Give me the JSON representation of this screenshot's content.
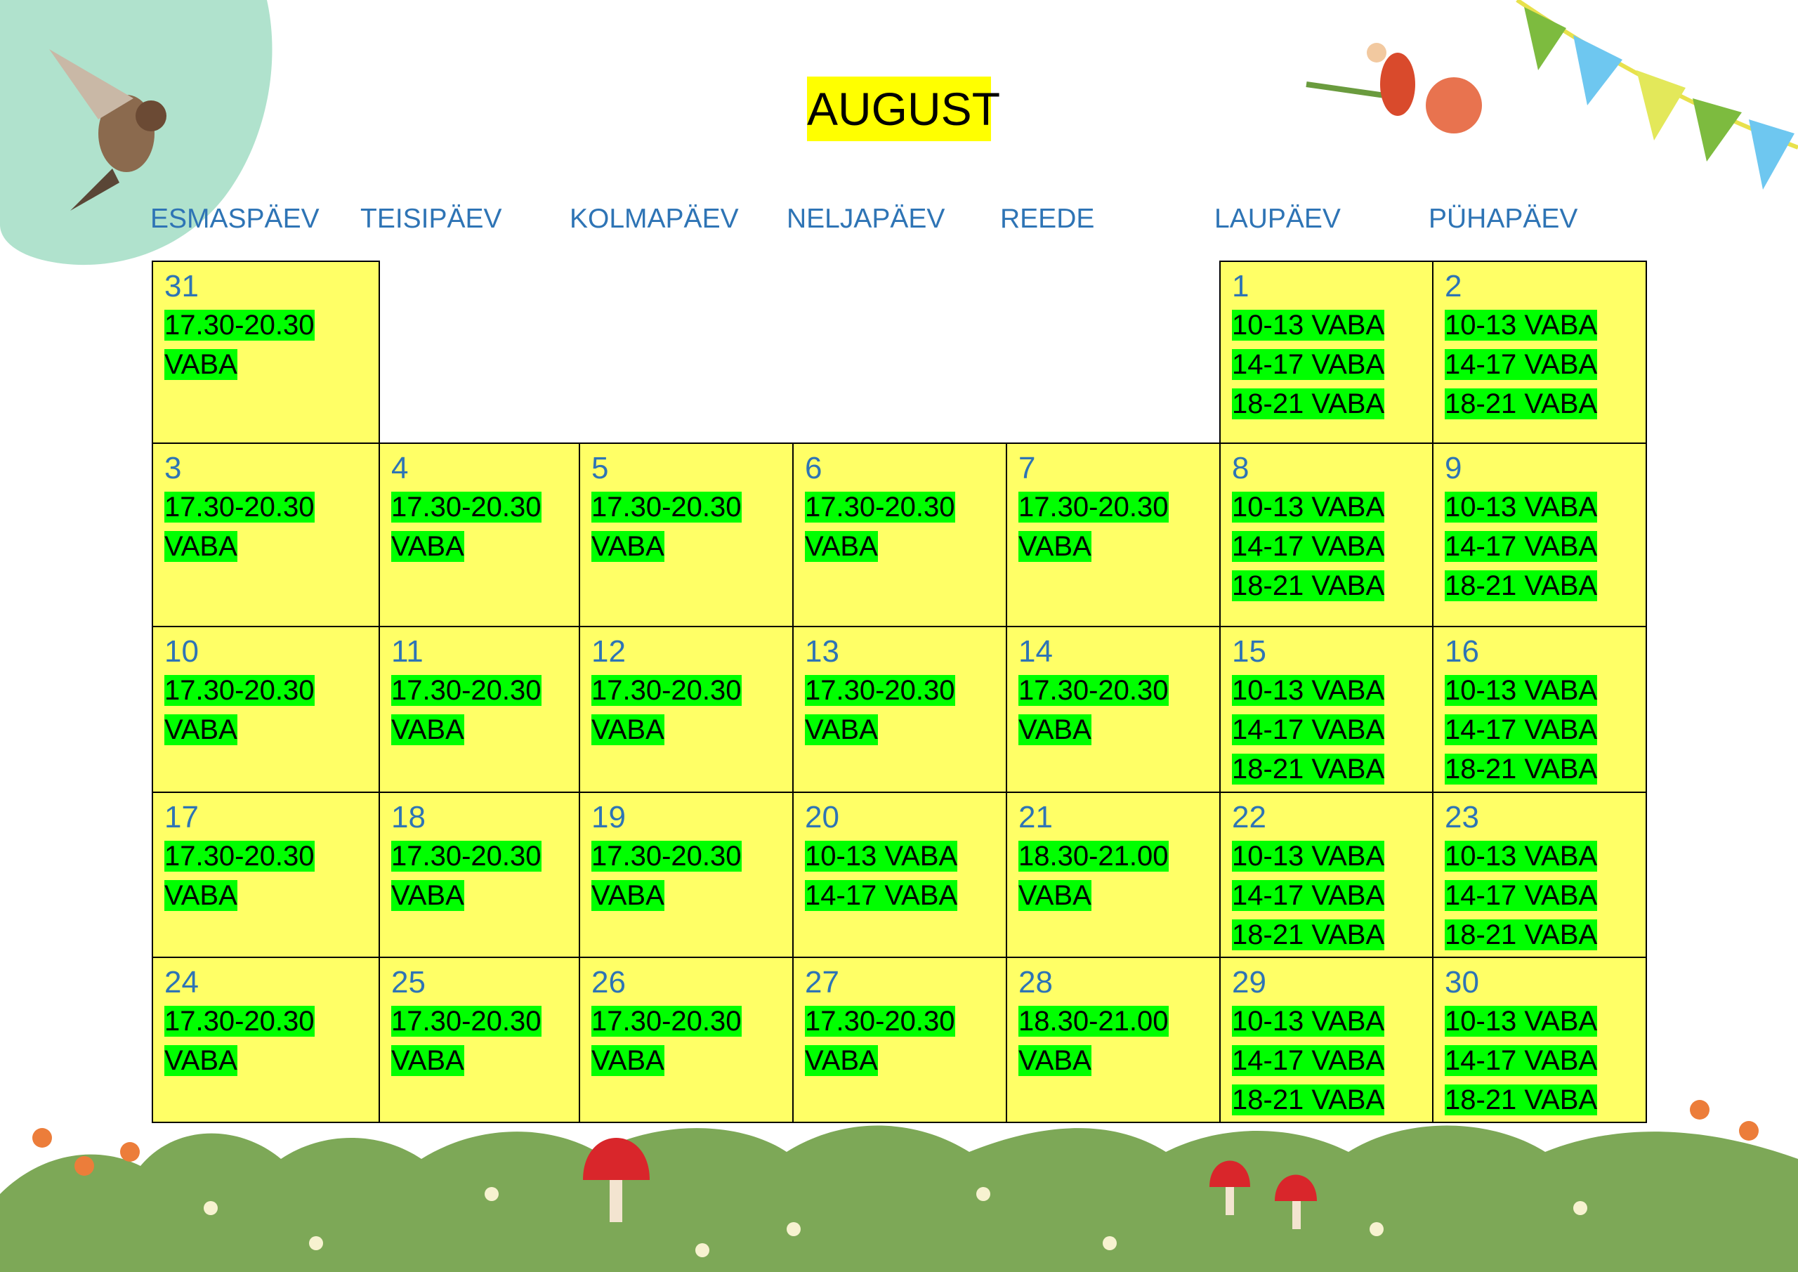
{
  "calendar": {
    "title": "AUGUST",
    "weekdays": [
      "ESMASPÄEV",
      "TEISIPÄEV",
      "KOLMAPÄEV",
      "NELJAPÄEV",
      "REEDE",
      "LAUPÄEV",
      "PÜHAPÄEV"
    ],
    "weeks": [
      [
        {
          "day": 31,
          "lines": [
            "17.30-20.30",
            "VABA"
          ]
        },
        null,
        null,
        null,
        null,
        {
          "day": 1,
          "lines": [
            "10-13 VABA",
            "14-17 VABA",
            "18-21 VABA"
          ]
        },
        {
          "day": 2,
          "lines": [
            "10-13 VABA",
            "14-17 VABA",
            "18-21 VABA"
          ]
        }
      ],
      [
        {
          "day": 3,
          "lines": [
            "17.30-20.30",
            "VABA"
          ]
        },
        {
          "day": 4,
          "lines": [
            "17.30-20.30",
            "VABA"
          ]
        },
        {
          "day": 5,
          "lines": [
            "17.30-20.30",
            "VABA"
          ]
        },
        {
          "day": 6,
          "lines": [
            "17.30-20.30",
            "VABA"
          ]
        },
        {
          "day": 7,
          "lines": [
            "17.30-20.30",
            "VABA"
          ]
        },
        {
          "day": 8,
          "lines": [
            "10-13 VABA",
            "14-17 VABA",
            "18-21 VABA"
          ]
        },
        {
          "day": 9,
          "lines": [
            "10-13 VABA",
            "14-17 VABA",
            "18-21 VABA"
          ]
        }
      ],
      [
        {
          "day": 10,
          "lines": [
            "17.30-20.30",
            "VABA"
          ]
        },
        {
          "day": 11,
          "lines": [
            "17.30-20.30",
            "VABA"
          ]
        },
        {
          "day": 12,
          "lines": [
            "17.30-20.30",
            "VABA"
          ]
        },
        {
          "day": 13,
          "lines": [
            "17.30-20.30",
            "VABA"
          ]
        },
        {
          "day": 14,
          "lines": [
            "17.30-20.30",
            "VABA"
          ]
        },
        {
          "day": 15,
          "lines": [
            "10-13 VABA",
            "14-17 VABA",
            "18-21 VABA"
          ]
        },
        {
          "day": 16,
          "lines": [
            "10-13 VABA",
            "14-17 VABA",
            "18-21 VABA"
          ]
        }
      ],
      [
        {
          "day": 17,
          "lines": [
            "17.30-20.30",
            "VABA"
          ]
        },
        {
          "day": 18,
          "lines": [
            "17.30-20.30",
            "VABA"
          ]
        },
        {
          "day": 19,
          "lines": [
            "17.30-20.30",
            "VABA"
          ]
        },
        {
          "day": 20,
          "lines": [
            "10-13 VABA",
            "14-17 VABA"
          ]
        },
        {
          "day": 21,
          "lines": [
            "18.30-21.00",
            "VABA"
          ]
        },
        {
          "day": 22,
          "lines": [
            "10-13 VABA",
            "14-17 VABA",
            "18-21 VABA"
          ]
        },
        {
          "day": 23,
          "lines": [
            "10-13 VABA",
            "14-17 VABA",
            "18-21 VABA"
          ]
        }
      ],
      [
        {
          "day": 24,
          "lines": [
            "17.30-20.30",
            "VABA"
          ]
        },
        {
          "day": 25,
          "lines": [
            "17.30-20.30",
            "VABA"
          ]
        },
        {
          "day": 26,
          "lines": [
            "17.30-20.30",
            "VABA"
          ]
        },
        {
          "day": 27,
          "lines": [
            "17.30-20.30",
            "VABA"
          ]
        },
        {
          "day": 28,
          "lines": [
            "18.30-21.00",
            "VABA"
          ]
        },
        {
          "day": 29,
          "lines": [
            "10-13 VABA",
            "14-17 VABA",
            "18-21 VABA"
          ]
        },
        {
          "day": 30,
          "lines": [
            "10-13 VABA",
            "14-17 VABA",
            "18-21 VABA"
          ]
        }
      ]
    ]
  }
}
